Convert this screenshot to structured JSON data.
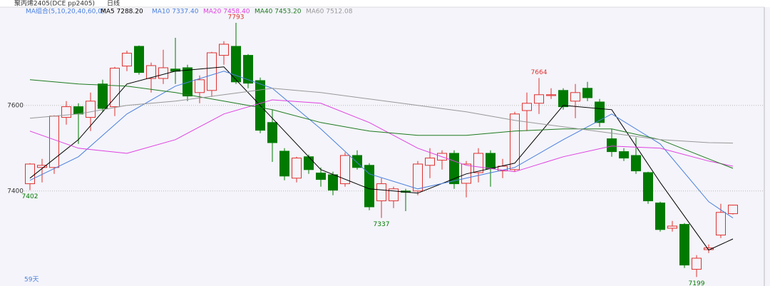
{
  "chart_data": {
    "type": "candlestick",
    "title": "聚丙烯2405(DCE pp2405)",
    "period": "日线",
    "ma_group": "MA组合(5,10,20,40,60,0)",
    "legend": [
      "MA5 7288.20",
      "MA10 7337.40",
      "MA20 7458.40",
      "MA40 7453.20",
      "MA60 7512.08"
    ],
    "footer": "59天",
    "up_color": "#e0302f",
    "down_color": "#007a00",
    "ylim": [
      7188,
      7833
    ],
    "yticks": [
      7400,
      7600
    ],
    "grid": true,
    "open": [
      7417,
      7455,
      7455,
      7572,
      7597,
      7572,
      7650,
      7597,
      7692,
      7738,
      7663,
      7663,
      7685,
      7688,
      7630,
      7635,
      7717,
      7738,
      7717,
      7658,
      7560,
      7493,
      7430,
      7480,
      7442,
      7438,
      7417,
      7483,
      7460,
      7377,
      7377,
      7400,
      7400,
      7460,
      7472,
      7488,
      7418,
      7443,
      7488,
      7447,
      7450,
      7588,
      7605,
      7623,
      7635,
      7610,
      7640,
      7608,
      7522,
      7492,
      7483,
      7443,
      7372,
      7313,
      7322,
      7217,
      7263,
      7297,
      7347
    ],
    "high": [
      7465,
      7475,
      7577,
      7610,
      7605,
      7630,
      7660,
      7690,
      7728,
      7740,
      7700,
      7730,
      7758,
      7695,
      7670,
      7725,
      7750,
      7793,
      7720,
      7665,
      7590,
      7500,
      7480,
      7485,
      7455,
      7445,
      7490,
      7495,
      7465,
      7430,
      7410,
      7405,
      7470,
      7500,
      7495,
      7495,
      7470,
      7500,
      7495,
      7475,
      7585,
      7630,
      7664,
      7640,
      7640,
      7650,
      7655,
      7615,
      7545,
      7500,
      7525,
      7445,
      7375,
      7330,
      7325,
      7250,
      7275,
      7370,
      7368
    ],
    "low": [
      7402,
      7420,
      7440,
      7555,
      7510,
      7540,
      7585,
      7575,
      7680,
      7672,
      7630,
      7650,
      7650,
      7610,
      7605,
      7620,
      7695,
      7650,
      7640,
      7535,
      7468,
      7425,
      7420,
      7440,
      7410,
      7390,
      7410,
      7450,
      7355,
      7337,
      7360,
      7353,
      7390,
      7430,
      7450,
      7405,
      7385,
      7420,
      7410,
      7430,
      7445,
      7540,
      7580,
      7615,
      7590,
      7570,
      7610,
      7550,
      7480,
      7470,
      7440,
      7370,
      7305,
      7305,
      7220,
      7199,
      7255,
      7290,
      7345
    ],
    "close": [
      7463,
      7460,
      7575,
      7597,
      7580,
      7610,
      7593,
      7687,
      7722,
      7677,
      7693,
      7688,
      7680,
      7622,
      7660,
      7723,
      7743,
      7655,
      7652,
      7542,
      7513,
      7435,
      7477,
      7450,
      7427,
      7402,
      7483,
      7455,
      7363,
      7417,
      7405,
      7397,
      7463,
      7477,
      7488,
      7417,
      7463,
      7488,
      7452,
      7458,
      7580,
      7605,
      7625,
      7625,
      7597,
      7630,
      7618,
      7560,
      7492,
      7477,
      7447,
      7377,
      7310,
      7318,
      7227,
      7243,
      7267,
      7350,
      7367
    ],
    "annotations": [
      7793,
      7664,
      7402,
      7337,
      7199
    ],
    "series": [
      {
        "name": "MA5",
        "color": "#000000",
        "x": [
          0,
          4,
          8,
          12,
          16,
          20,
          24,
          28,
          32,
          36,
          40,
          44,
          48,
          52,
          56,
          58
        ],
        "values": [
          7430,
          7520,
          7650,
          7680,
          7690,
          7570,
          7450,
          7405,
          7395,
          7440,
          7465,
          7600,
          7590,
          7420,
          7262,
          7288
        ]
      },
      {
        "name": "MA10",
        "color": "#4a7fdc",
        "x": [
          0,
          4,
          8,
          12,
          16,
          20,
          24,
          28,
          32,
          36,
          40,
          44,
          48,
          52,
          56,
          58
        ],
        "values": [
          7425,
          7480,
          7580,
          7645,
          7680,
          7640,
          7545,
          7440,
          7405,
          7430,
          7455,
          7520,
          7580,
          7510,
          7375,
          7337
        ]
      },
      {
        "name": "MA20",
        "color": "#e040e0",
        "x": [
          0,
          4,
          8,
          12,
          16,
          20,
          24,
          28,
          32,
          36,
          40,
          44,
          48,
          52,
          56,
          58
        ],
        "values": [
          7540,
          7500,
          7488,
          7520,
          7580,
          7613,
          7605,
          7560,
          7500,
          7460,
          7445,
          7480,
          7505,
          7500,
          7470,
          7458
        ]
      },
      {
        "name": "MA40",
        "color": "#1e7a1e",
        "x": [
          0,
          4,
          8,
          12,
          16,
          20,
          24,
          28,
          32,
          36,
          40,
          44,
          48,
          52,
          56,
          58
        ],
        "values": [
          7660,
          7650,
          7645,
          7630,
          7610,
          7590,
          7560,
          7540,
          7530,
          7530,
          7540,
          7545,
          7545,
          7520,
          7475,
          7453
        ]
      },
      {
        "name": "MA60",
        "color": "#999999",
        "x": [
          0,
          4,
          8,
          12,
          16,
          20,
          24,
          28,
          32,
          36,
          40,
          44,
          48,
          52,
          56,
          58
        ],
        "values": [
          7570,
          7580,
          7600,
          7610,
          7625,
          7640,
          7630,
          7615,
          7600,
          7585,
          7565,
          7550,
          7535,
          7520,
          7513,
          7512
        ]
      }
    ]
  }
}
